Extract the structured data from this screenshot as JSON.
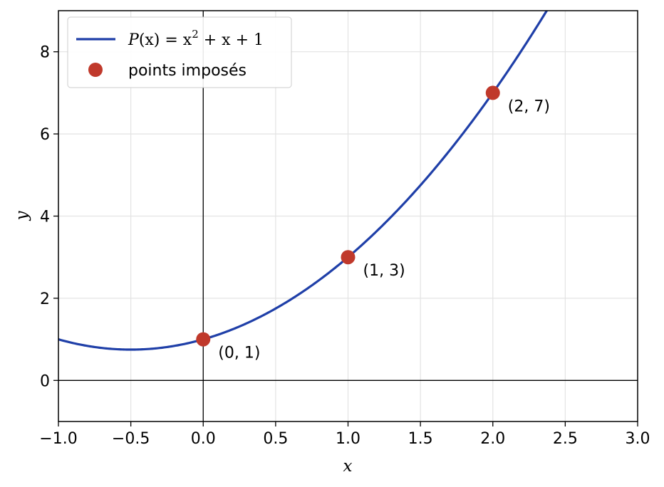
{
  "chart_data": {
    "type": "line",
    "xlabel": "x",
    "ylabel": "y",
    "xlim": [
      -1.0,
      3.0
    ],
    "ylim": [
      -1,
      9
    ],
    "x_ticks": [
      -1.0,
      -0.5,
      0.0,
      0.5,
      1.0,
      1.5,
      2.0,
      2.5,
      3.0
    ],
    "x_tick_labels": [
      "−1.0",
      "−0.5",
      "0.0",
      "0.5",
      "1.0",
      "1.5",
      "2.0",
      "2.5",
      "3.0"
    ],
    "y_ticks": [
      0,
      2,
      4,
      6,
      8
    ],
    "y_tick_labels": [
      "0",
      "2",
      "4",
      "6",
      "8"
    ],
    "grid": true,
    "reference_lines": {
      "x": 0,
      "y": 0
    },
    "legend_position": "top-left",
    "series": [
      {
        "name": "P(x) = x² + x + 1",
        "kind": "curve",
        "coefficients": [
          1,
          1,
          1
        ],
        "color": "#1f3fa8"
      },
      {
        "name": "points imposés",
        "kind": "points",
        "color": "#c0392b",
        "points": [
          {
            "x": 0,
            "y": 1,
            "label": "(0, 1)"
          },
          {
            "x": 1,
            "y": 3,
            "label": "(1, 3)"
          },
          {
            "x": 2,
            "y": 7,
            "label": "(2, 7)"
          }
        ]
      }
    ],
    "legend": {
      "curve_prefix": "P",
      "curve_arg": "(x) = x",
      "curve_exp": "2",
      "curve_suffix": " + x + 1",
      "points_label": "points imposés"
    }
  }
}
